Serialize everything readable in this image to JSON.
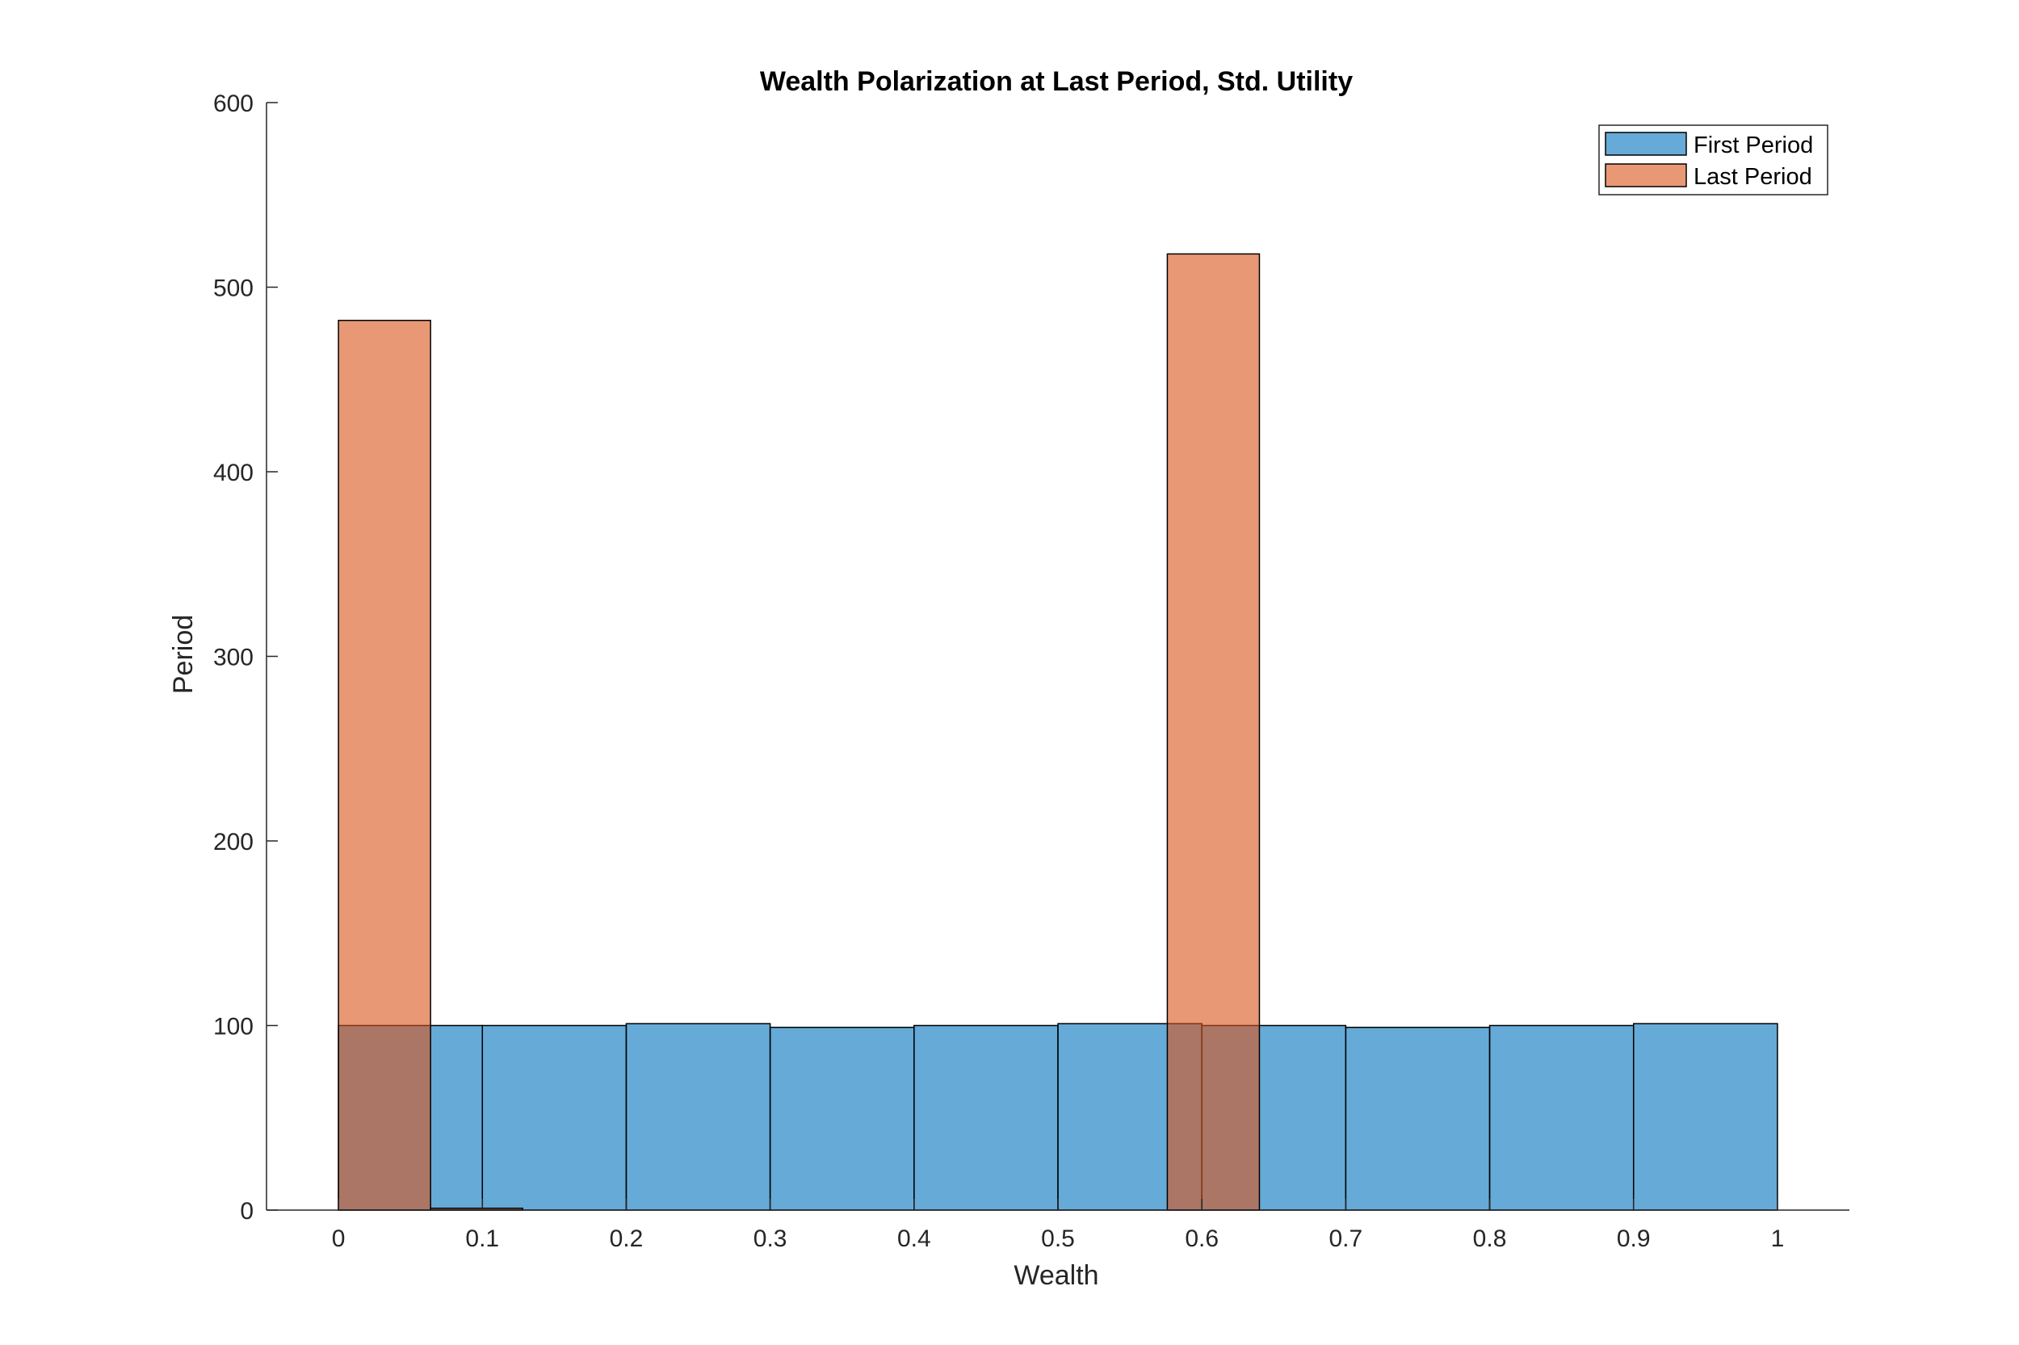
{
  "chart_data": {
    "type": "bar",
    "title": "Wealth Polarization at Last Period, Std. Utility",
    "xlabel": "Wealth",
    "ylabel": "Period",
    "xlim": [
      -0.05,
      1.05
    ],
    "ylim": [
      0,
      600
    ],
    "xticks": [
      "0",
      "0.1",
      "0.2",
      "0.3",
      "0.4",
      "0.5",
      "0.6",
      "0.7",
      "0.8",
      "0.9",
      "1"
    ],
    "yticks": [
      "0",
      "100",
      "200",
      "300",
      "400",
      "500",
      "600"
    ],
    "grid": false,
    "legend_position": "top-right",
    "series": [
      {
        "name": "First Period",
        "color": "#0072BD",
        "bins": [
          {
            "x0": 0.0,
            "x1": 0.1,
            "value": 100
          },
          {
            "x0": 0.1,
            "x1": 0.2,
            "value": 100
          },
          {
            "x0": 0.2,
            "x1": 0.3,
            "value": 101
          },
          {
            "x0": 0.3,
            "x1": 0.4,
            "value": 99
          },
          {
            "x0": 0.4,
            "x1": 0.5,
            "value": 100
          },
          {
            "x0": 0.5,
            "x1": 0.6,
            "value": 101
          },
          {
            "x0": 0.6,
            "x1": 0.7,
            "value": 100
          },
          {
            "x0": 0.7,
            "x1": 0.8,
            "value": 99
          },
          {
            "x0": 0.8,
            "x1": 0.9,
            "value": 100
          },
          {
            "x0": 0.9,
            "x1": 1.0,
            "value": 101
          }
        ]
      },
      {
        "name": "Last Period",
        "color": "#D95319",
        "bins": [
          {
            "x0": 0.0,
            "x1": 0.064,
            "value": 482
          },
          {
            "x0": 0.064,
            "x1": 0.128,
            "value": 1
          },
          {
            "x0": 0.576,
            "x1": 0.64,
            "value": 518
          }
        ]
      }
    ]
  }
}
